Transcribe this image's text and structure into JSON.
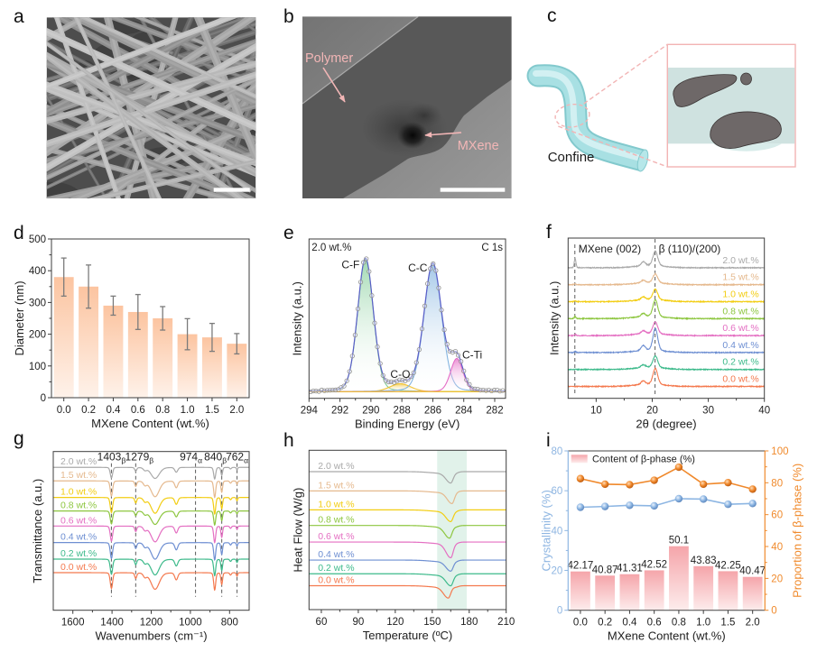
{
  "figure": {
    "panel_a": {
      "letter": "a",
      "scale_bar": true
    },
    "panel_b": {
      "letter": "b",
      "labels": {
        "polymer": "Polymer",
        "mxene": "MXene"
      },
      "annotation_color": "#f2b6b6",
      "scale_bar": true
    },
    "panel_c": {
      "letter": "c",
      "label": "Confine",
      "colors": {
        "tube": "#a8e0e3",
        "tube_edge": "#82c9cd",
        "outline": "#f2b4b4",
        "matrix": "#cfe2e0",
        "mxene": "#6e6868"
      }
    }
  },
  "chart_data": [
    {
      "panel": "d",
      "type": "bar",
      "title": "",
      "categories": [
        "0.0",
        "0.2",
        "0.4",
        "0.6",
        "0.8",
        "1.0",
        "1.5",
        "2.0"
      ],
      "values": [
        380,
        350,
        290,
        270,
        250,
        200,
        190,
        170
      ],
      "errors": [
        60,
        68,
        30,
        55,
        37,
        49,
        44,
        32
      ],
      "xlabel": "MXene Content (wt.%)",
      "ylabel": "Diameter (nm)",
      "ylim": [
        0,
        500
      ],
      "yticks": [
        0,
        100,
        200,
        300,
        400,
        500
      ],
      "grid": false,
      "colors": {
        "bar_top": "#fcc4a0",
        "bar_bottom": "#fef2ea",
        "error": "#7b7b7b"
      }
    },
    {
      "panel": "e",
      "type": "line",
      "title": "",
      "annotations": {
        "sample": "2.0 wt.%",
        "region": "C 1s"
      },
      "xlabel": "Binding Energy (eV)",
      "ylabel": "Intensity (a.u.)",
      "xlim": [
        294,
        281.3
      ],
      "xticks": [
        294,
        292,
        290,
        288,
        286,
        284,
        282
      ],
      "ylim": [
        0,
        1.2
      ],
      "baseline": 0.05,
      "lorentz_fraction": 0.15,
      "components": [
        {
          "name": "C-F",
          "center": 290.35,
          "fwhm": 1.2,
          "height": 1.0,
          "color": "#7fcb95"
        },
        {
          "name": "C-O",
          "center": 288.1,
          "fwhm": 1.6,
          "height": 0.06,
          "color": "#f0c02c"
        },
        {
          "name": "C-C",
          "center": 286.0,
          "fwhm": 1.35,
          "height": 0.96,
          "color": "#84b4e0"
        },
        {
          "name": "C-Ti",
          "center": 284.45,
          "fwhm": 0.95,
          "height": 0.25,
          "color": "#e46cc6"
        }
      ],
      "envelope_color": "#5a5ec8",
      "baseline_color": "#f0c02c",
      "data_marker_color": "#8e8e8e",
      "grid": false
    },
    {
      "panel": "f",
      "type": "line",
      "title": "",
      "xlabel": "2θ (degree)",
      "ylabel": "Intensity (a.u.)",
      "xlim": [
        5,
        40
      ],
      "xticks": [
        10,
        20,
        30,
        40
      ],
      "ylim": [
        -0.7,
        8.75
      ],
      "reference_lines": [
        {
          "x": 6.2,
          "label": "MXene (002)"
        },
        {
          "x": 20.5,
          "label": "β (110)/(200)"
        }
      ],
      "amorphous_halo": {
        "center": 19.5,
        "fwhm": 6,
        "height": 0.12
      },
      "series": [
        {
          "name": "2.0 wt.%",
          "offset": 7,
          "color": "#a9a9a9",
          "peaks": [
            {
              "center": 20.55,
              "fwhm": 1.0,
              "height": 0.87
            },
            {
              "center": 18.4,
              "fwhm": 0.9,
              "height": 0.24
            },
            {
              "center": 6.25,
              "fwhm": 0.35,
              "height": 0.55
            }
          ]
        },
        {
          "name": "1.5 wt.%",
          "offset": 6,
          "color": "#e5b98e",
          "peaks": [
            {
              "center": 20.55,
              "fwhm": 1.0,
              "height": 0.53
            },
            {
              "center": 18.4,
              "fwhm": 0.9,
              "height": 0.15
            },
            {
              "center": 6.25,
              "fwhm": 0.35,
              "height": 0.06
            }
          ]
        },
        {
          "name": "1.0 wt.%",
          "offset": 5,
          "color": "#f2cd12",
          "peaks": [
            {
              "center": 20.55,
              "fwhm": 1.0,
              "height": 0.63
            },
            {
              "center": 18.4,
              "fwhm": 0.9,
              "height": 0.17
            },
            {
              "center": 6.25,
              "fwhm": 0.35,
              "height": 0.05
            }
          ]
        },
        {
          "name": "0.8 wt.%",
          "offset": 4,
          "color": "#8dc63f",
          "peaks": [
            {
              "center": 20.55,
              "fwhm": 1.0,
              "height": 1.01
            },
            {
              "center": 18.4,
              "fwhm": 0.9,
              "height": 0.2
            },
            {
              "center": 6.25,
              "fwhm": 0.35,
              "height": 0.12
            }
          ]
        },
        {
          "name": "0.6 wt.%",
          "offset": 3,
          "color": "#e46fc2",
          "peaks": [
            {
              "center": 20.55,
              "fwhm": 1.0,
              "height": 0.69
            },
            {
              "center": 18.4,
              "fwhm": 0.9,
              "height": 0.18
            },
            {
              "center": 6.25,
              "fwhm": 0.35,
              "height": 0.08
            }
          ]
        },
        {
          "name": "0.4 wt.%",
          "offset": 2,
          "color": "#6e8fd2",
          "peaks": [
            {
              "center": 20.55,
              "fwhm": 1.0,
              "height": 1.31
            },
            {
              "center": 18.4,
              "fwhm": 0.9,
              "height": 0.3
            },
            {
              "center": 6.25,
              "fwhm": 0.35,
              "height": 0.06
            }
          ]
        },
        {
          "name": "0.2 wt.%",
          "offset": 1,
          "color": "#3dba8b",
          "peaks": [
            {
              "center": 20.55,
              "fwhm": 1.0,
              "height": 0.7
            },
            {
              "center": 18.4,
              "fwhm": 0.9,
              "height": 0.17
            }
          ]
        },
        {
          "name": "0.0 wt.%",
          "offset": 0,
          "color": "#f4794e",
          "peaks": [
            {
              "center": 20.55,
              "fwhm": 1.0,
              "height": 0.95
            },
            {
              "center": 18.4,
              "fwhm": 0.9,
              "height": 0.22
            }
          ]
        }
      ],
      "grid": false
    },
    {
      "panel": "g",
      "type": "line",
      "title": "",
      "xlabel": "Wavenum­bers (cm⁻¹)",
      "ylabel": "Transmittance (a.u.)",
      "xlim": [
        1700,
        700
      ],
      "xticks": [
        1600,
        1400,
        1200,
        1000,
        800
      ],
      "ylim": [
        -2.5,
        8.05
      ],
      "reference_bands": [
        {
          "wavenumber": 1403,
          "phase": "β"
        },
        {
          "wavenumber": 1279,
          "phase": "β"
        },
        {
          "wavenumber": 974,
          "phase": "α"
        },
        {
          "wavenumber": 840,
          "phase": "β"
        },
        {
          "wavenumber": 762,
          "phase": "α"
        }
      ],
      "bands": [
        {
          "center": 1403,
          "fwhm": 14,
          "depth": 1.0
        },
        {
          "center": 1279,
          "fwhm": 12,
          "depth": 0.35
        },
        {
          "center": 1232,
          "fwhm": 20,
          "depth": 0.25
        },
        {
          "center": 1180,
          "fwhm": 50,
          "depth": 1.05
        },
        {
          "center": 1072,
          "fwhm": 18,
          "depth": 0.45
        },
        {
          "center": 876,
          "fwhm": 12,
          "depth": 1.1
        },
        {
          "center": 840,
          "fwhm": 10,
          "depth": 0.75
        },
        {
          "center": 795,
          "fwhm": 10,
          "depth": 0.15
        },
        {
          "center": 762,
          "fwhm": 8,
          "depth": 0.22
        }
      ],
      "series": [
        {
          "name": "2.0 wt.%",
          "offset": 7.0,
          "scale": 0.7,
          "color": "#a9a9a9"
        },
        {
          "name": "1.5 wt.%",
          "offset": 6.1,
          "scale": 1.0,
          "color": "#e5b98e"
        },
        {
          "name": "1.0 wt.%",
          "offset": 5.0,
          "scale": 1.0,
          "color": "#f2cd12"
        },
        {
          "name": "0.8 wt.%",
          "offset": 4.1,
          "scale": 0.85,
          "color": "#8dc63f"
        },
        {
          "name": "0.6 wt.%",
          "offset": 3.1,
          "scale": 1.0,
          "color": "#e46fc2"
        },
        {
          "name": "0.4 wt.%",
          "offset": 2.0,
          "scale": 1.05,
          "color": "#6e8fd2"
        },
        {
          "name": "0.2 wt.%",
          "offset": 0.9,
          "scale": 1.0,
          "color": "#3dba8b"
        },
        {
          "name": "0.0 wt.%",
          "offset": 0.0,
          "scale": 1.05,
          "color": "#f4794e"
        }
      ],
      "grid": false
    },
    {
      "panel": "h",
      "type": "line",
      "title": "",
      "xlabel": "Temperature (ºC)",
      "ylabel": "Heat Flow (W/g)",
      "xlim": [
        50,
        210
      ],
      "xticks": [
        60,
        90,
        120,
        150,
        180,
        210
      ],
      "ylim": [
        0,
        10
      ],
      "highlight_range": [
        154,
        178
      ],
      "highlight_color": "#e1f2ea",
      "series": [
        {
          "name": "2.0 wt.%",
          "offset": 8.66,
          "melting_peak": 165,
          "depth": 0.6,
          "color": "#a9a9a9"
        },
        {
          "name": "1.5 wt.%",
          "offset": 7.45,
          "melting_peak": 166,
          "depth": 0.68,
          "color": "#e5b98e"
        },
        {
          "name": "1.0 wt.%",
          "offset": 6.26,
          "melting_peak": 165,
          "depth": 0.62,
          "color": "#f2cd12"
        },
        {
          "name": "0.8 wt.%",
          "offset": 5.28,
          "melting_peak": 164,
          "depth": 0.68,
          "color": "#8dc63f"
        },
        {
          "name": "0.6 wt.%",
          "offset": 4.24,
          "melting_peak": 165,
          "depth": 0.87,
          "color": "#e46fc2"
        },
        {
          "name": "0.4 wt.%",
          "offset": 3.11,
          "melting_peak": 165,
          "depth": 0.58,
          "color": "#6e8fd2"
        },
        {
          "name": "0.2 wt.%",
          "offset": 2.25,
          "melting_peak": 165,
          "depth": 0.64,
          "color": "#3dba8b"
        },
        {
          "name": "0.0 wt.%",
          "offset": 1.5,
          "melting_peak": 163,
          "depth": 0.66,
          "color": "#f4794e"
        }
      ],
      "grid": false
    },
    {
      "panel": "i",
      "type": "bar+line",
      "title": "",
      "categories": [
        "0.0",
        "0.2",
        "0.4",
        "0.6",
        "0.8",
        "1.0",
        "1.5",
        "2.0"
      ],
      "bars": {
        "name": "Content of β-phase (%)",
        "values": [
          42.17,
          40.87,
          41.31,
          42.52,
          50.1,
          43.83,
          42.25,
          40.47
        ],
        "axis_range": [
          30,
          80
        ],
        "color_top": "#f5a5aa",
        "color_bottom": "#fdecec"
      },
      "series": [
        {
          "name": "Crystallinity (%)",
          "axis": "left",
          "values": [
            51.7,
            52.1,
            52.7,
            52.4,
            56.0,
            55.8,
            53.2,
            53.6
          ],
          "color": "#8db6e3",
          "highlight": "#eaf2fc",
          "shade": "#5d87be"
        },
        {
          "name": "Proportion of β-phase (%)",
          "axis": "right",
          "values": [
            82.6,
            79.1,
            78.8,
            81.6,
            89.8,
            79.1,
            80.1,
            76.0
          ],
          "color": "#f0892c",
          "highlight": "#ffdcb8",
          "shade": "#bf5c10"
        }
      ],
      "xlabel": "MXene Content (wt.%)",
      "ylabel_left": "Crystallinity (%)",
      "ylabel_right": "Proportion of β-phase (%)",
      "ylim_left": [
        0,
        80
      ],
      "ylim_right": [
        0,
        100
      ],
      "yticks_left": [
        0,
        20,
        40,
        60,
        80
      ],
      "yticks_right": [
        0,
        20,
        40,
        60,
        80,
        100
      ],
      "legend_position": "top-left",
      "colors": {
        "left_axis": "#8fb6e2",
        "right_axis": "#f08a2c"
      },
      "grid": false
    }
  ]
}
